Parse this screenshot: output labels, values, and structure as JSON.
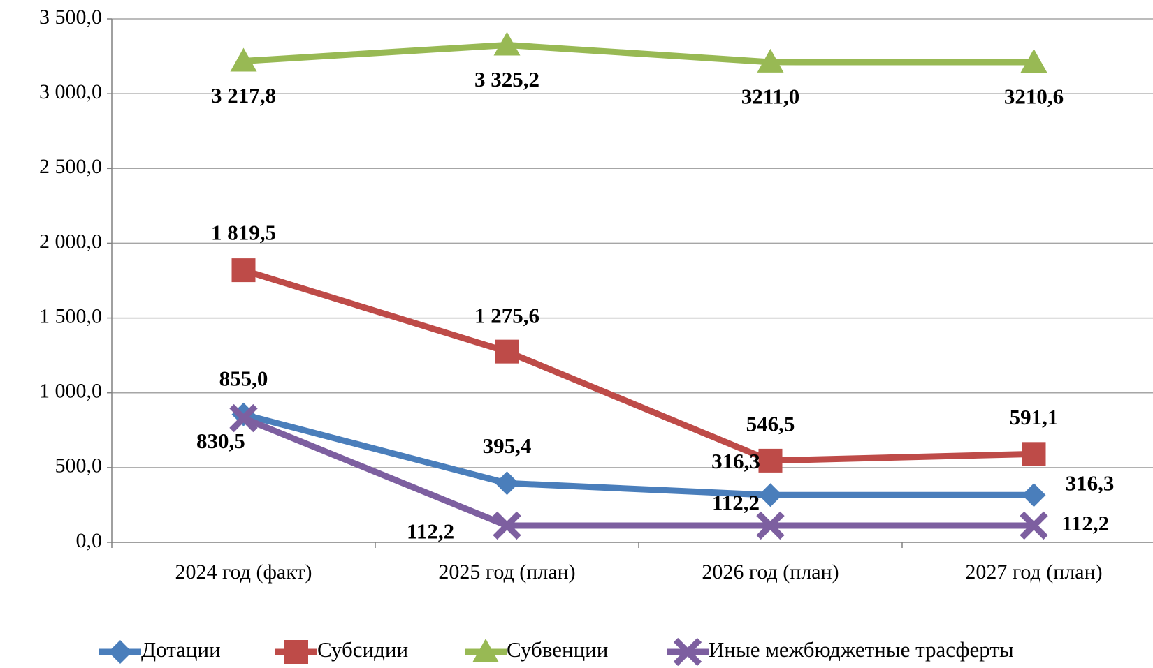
{
  "chart_data": {
    "type": "line",
    "categories": [
      "2024 год (факт)",
      "2025 год (план)",
      "2026 год (план)",
      "2027 год (план)"
    ],
    "series": [
      {
        "name": "Дотации",
        "color": "#4a7ebb",
        "marker": "diamond",
        "values": [
          855.0,
          395.4,
          316.3,
          316.3
        ],
        "value_labels": [
          "855,0",
          "395,4",
          "316,3",
          "316,3"
        ]
      },
      {
        "name": "Субсидии",
        "color": "#be4b48",
        "marker": "square",
        "values": [
          1819.5,
          1275.6,
          546.5,
          591.1
        ],
        "value_labels": [
          "1 819,5",
          "1 275,6",
          "546,5",
          "591,1"
        ]
      },
      {
        "name": "Субвенции",
        "color": "#98b954",
        "marker": "triangle",
        "values": [
          3217.8,
          3325.2,
          3211.0,
          3210.6
        ],
        "value_labels": [
          "3 217,8",
          "3 325,2",
          "3211,0",
          "3210,6"
        ]
      },
      {
        "name": "Иные межбюджетные трасферты",
        "color": "#7d5fa0",
        "marker": "x",
        "values": [
          830.5,
          112.2,
          112.2,
          112.2
        ],
        "value_labels": [
          "830,5",
          "112,2",
          "112,2",
          "112,2"
        ]
      }
    ],
    "ylim": [
      0,
      3500
    ],
    "yticks": [
      {
        "value": 0,
        "label": "0,0"
      },
      {
        "value": 500,
        "label": "500,0"
      },
      {
        "value": 1000,
        "label": "1 000,0"
      },
      {
        "value": 1500,
        "label": "1 500,0"
      },
      {
        "value": 2000,
        "label": "2 000,0"
      },
      {
        "value": 2500,
        "label": "2 500,0"
      },
      {
        "value": 3000,
        "label": "3 000,0"
      },
      {
        "value": 3500,
        "label": "3 500,0"
      }
    ],
    "grid": true,
    "legend": "bottom"
  }
}
